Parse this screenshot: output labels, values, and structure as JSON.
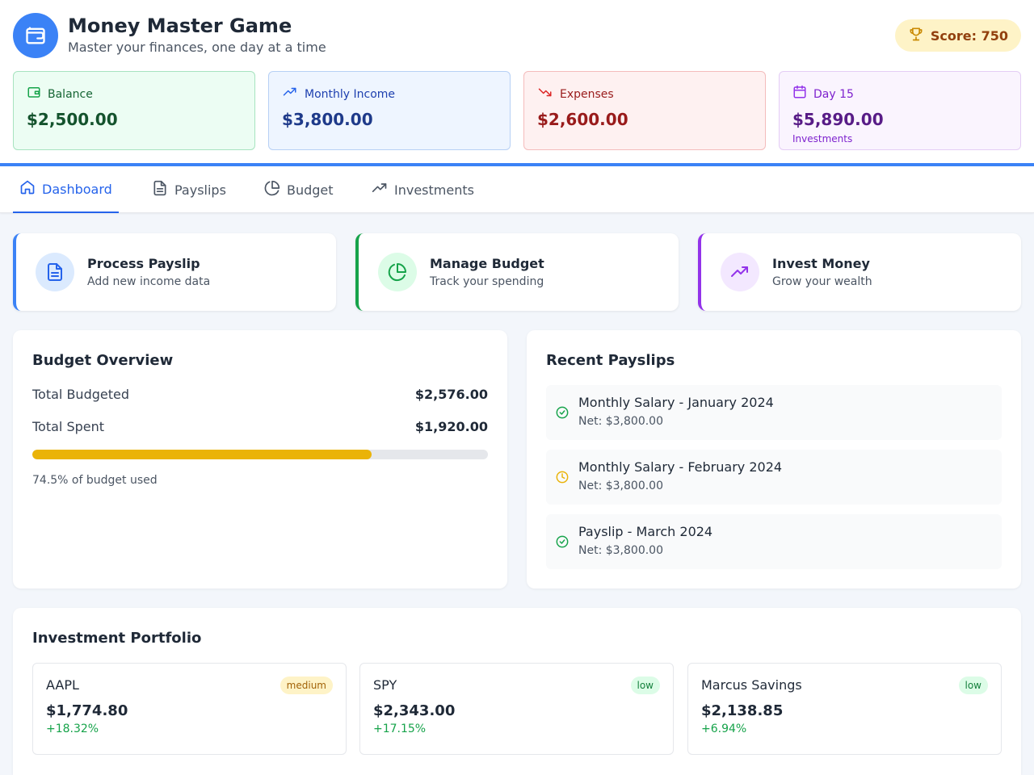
{
  "header": {
    "title": "Money Master Game",
    "subtitle": "Master your finances, one day at a time",
    "score": "Score: 750",
    "logo_icon": "wallet-icon"
  },
  "stats": {
    "balance": {
      "label": "Balance",
      "value": "$2,500.00"
    },
    "income": {
      "label": "Monthly Income",
      "value": "$3,800.00"
    },
    "expenses": {
      "label": "Expenses",
      "value": "$2,600.00"
    },
    "day": {
      "label": "Day 15",
      "value": "$5,890.00",
      "sub": "Investments"
    }
  },
  "tabs": [
    "Dashboard",
    "Payslips",
    "Budget",
    "Investments"
  ],
  "active_tab": "Dashboard",
  "actions": [
    {
      "title": "Process Payslip",
      "desc": "Add new income data",
      "icon": "document-icon",
      "color": "#3b82f6"
    },
    {
      "title": "Manage Budget",
      "desc": "Track your spending",
      "icon": "pie-chart-icon",
      "color": "#16a34a"
    },
    {
      "title": "Invest Money",
      "desc": "Grow your wealth",
      "icon": "trending-up-icon",
      "color": "#9333ea"
    }
  ],
  "budget": {
    "title": "Budget Overview",
    "total_budgeted_label": "Total Budgeted",
    "total_budgeted": "$2,576.00",
    "total_spent_label": "Total Spent",
    "total_spent": "$1,920.00",
    "progress": 0.745,
    "used_text": "74.5% of budget used"
  },
  "payslips": {
    "title": "Recent Payslips",
    "items": [
      {
        "title": "Monthly Salary - January 2024",
        "net": "Net: $3,800.00",
        "status": "check-circle-icon"
      },
      {
        "title": "Monthly Salary - February 2024",
        "net": "Net: $3,800.00",
        "status": "clock-icon"
      },
      {
        "title": "Payslip - March 2024",
        "net": "Net: $3,800.00",
        "status": "check-circle-icon"
      }
    ]
  },
  "portfolio": {
    "title": "Investment Portfolio",
    "items": [
      {
        "name": "AAPL",
        "risk": "medium",
        "value": "$1,774.80",
        "change": "+18.32%"
      },
      {
        "name": "SPY",
        "risk": "low",
        "value": "$2,343.00",
        "change": "+17.15%"
      },
      {
        "name": "Marcus Savings",
        "risk": "low",
        "value": "$2,138.85",
        "change": "+6.94%"
      }
    ]
  }
}
